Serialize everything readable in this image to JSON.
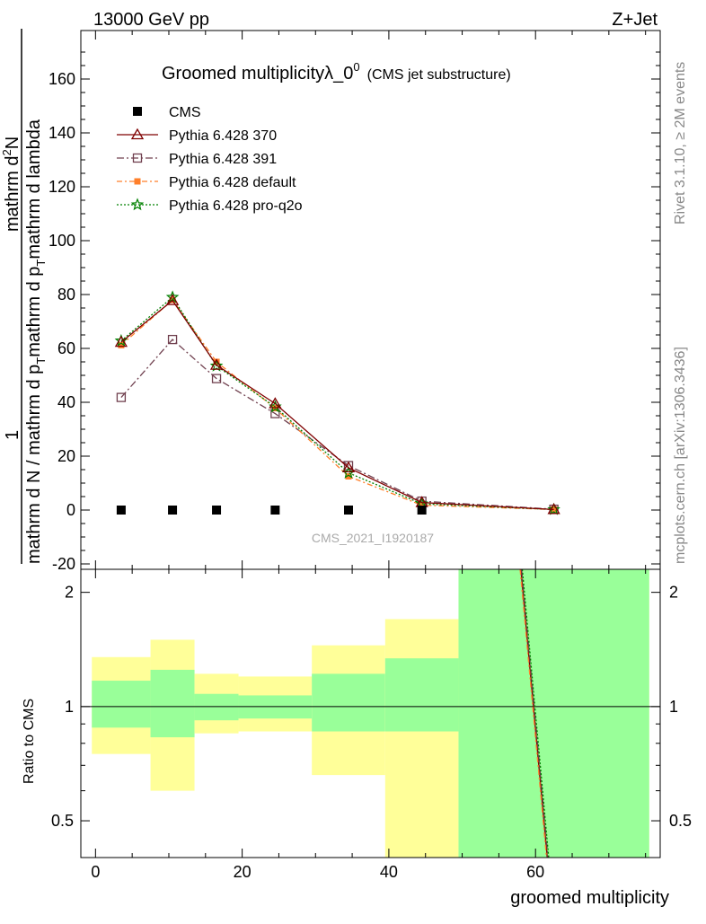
{
  "header": {
    "left": "13000 GeV pp",
    "right": "Z+Jet"
  },
  "side_texts": {
    "rivet": "Rivet 3.1.10, ≥ 2M events",
    "mcplots": "mcplots.cern.ch [arXiv:1306.3436]"
  },
  "watermark": "CMS_2021_I1920187",
  "colors": {
    "cms": "#000000",
    "p370": "#7f0000",
    "p391": "#70404f",
    "pdefault": "#ff7f2a",
    "pq2o": "#008000",
    "band_inner": "#99ff99",
    "band_outer": "#ffff99"
  },
  "chart_data": [
    {
      "type": "line",
      "title_main": "Groomed multiplicityλ_0",
      "title_sup": "0",
      "title_sub": "(CMS jet substructure)",
      "ylabel": {
        "numerator": "mathrm d",
        "num_sup": "2",
        "num_tail": "N",
        "one": "1",
        "denominator": "mathrm d N / mathrm d p",
        "den_sub": "T",
        "den_mid": "mathrm d p",
        "den_sub2": "T",
        "den_tail": "mathrm d lambda"
      },
      "ylim": [
        -22,
        178
      ],
      "xlim": [
        -2,
        77
      ],
      "yticks": [
        -20,
        0,
        20,
        40,
        60,
        80,
        100,
        120,
        140,
        160
      ],
      "x": [
        3.5,
        10.5,
        16.5,
        24.5,
        34.5,
        44.5,
        62.5
      ],
      "series": [
        {
          "name": "CMS",
          "key": "cms",
          "marker": "square-filled",
          "values": [
            0,
            0,
            0,
            0,
            0,
            0,
            null
          ]
        },
        {
          "name": "Pythia 6.428 370",
          "key": "p370",
          "marker": "triangle-open",
          "dash": "",
          "values": [
            62.3,
            77.8,
            53.8,
            39.5,
            15.7,
            2.8,
            0.2
          ]
        },
        {
          "name": "Pythia 6.428 391",
          "key": "p391",
          "marker": "square-open",
          "dash": "8,3,2,3",
          "values": [
            41.8,
            63.3,
            48.8,
            35.8,
            16.5,
            3.3,
            0.3
          ]
        },
        {
          "name": "Pythia 6.428 default",
          "key": "pdefault",
          "marker": "square-filled-small",
          "dash": "6,3,2,3",
          "values": [
            61.2,
            78.0,
            55.0,
            37.8,
            12.5,
            1.8,
            0.2
          ]
        },
        {
          "name": "Pythia 6.428 pro-q2o",
          "key": "pq2o",
          "marker": "star",
          "dash": "2,2",
          "values": [
            62.8,
            79.0,
            53.5,
            38.3,
            13.8,
            2.3,
            0.2
          ]
        }
      ]
    },
    {
      "type": "area",
      "ylabel": "Ratio to CMS",
      "xlabel": "groomed multiplicity",
      "scale": "log",
      "ylim": [
        0.4,
        2.3
      ],
      "xlim": [
        -2,
        77
      ],
      "xticks": [
        0,
        20,
        40,
        60
      ],
      "yticks": [
        0.5,
        1,
        2
      ],
      "bins": [
        {
          "lo": -0.5,
          "hi": 7.5,
          "inner": [
            0.88,
            1.17
          ],
          "outer": [
            0.75,
            1.35
          ]
        },
        {
          "lo": 7.5,
          "hi": 13.5,
          "inner": [
            0.83,
            1.25
          ],
          "outer": [
            0.6,
            1.5
          ]
        },
        {
          "lo": 13.5,
          "hi": 19.5,
          "inner": [
            0.92,
            1.08
          ],
          "outer": [
            0.85,
            1.22
          ]
        },
        {
          "lo": 19.5,
          "hi": 29.5,
          "inner": [
            0.93,
            1.07
          ],
          "outer": [
            0.86,
            1.2
          ]
        },
        {
          "lo": 29.5,
          "hi": 39.5,
          "inner": [
            0.86,
            1.22
          ],
          "outer": [
            0.66,
            1.45
          ]
        },
        {
          "lo": 39.5,
          "hi": 49.5,
          "inner": [
            0.86,
            1.34
          ],
          "outer": [
            0.4,
            1.7
          ]
        },
        {
          "lo": 49.5,
          "hi": 75.5,
          "inner": [
            0.4,
            2.3
          ],
          "outer": [
            0.4,
            2.3
          ]
        }
      ],
      "mc_lines": [
        {
          "key": "p370",
          "points": [
            [
              58.0,
              2.3
            ],
            [
              61.6,
              0.4
            ]
          ]
        },
        {
          "key": "p391",
          "points": [
            [
              58.1,
              2.3
            ],
            [
              61.7,
              0.4
            ]
          ]
        },
        {
          "key": "pdefault",
          "points": [
            [
              57.9,
              2.3
            ],
            [
              61.5,
              0.4
            ]
          ]
        },
        {
          "key": "pq2o",
          "points": [
            [
              58.2,
              2.3
            ],
            [
              61.8,
              0.4
            ]
          ]
        }
      ]
    }
  ]
}
